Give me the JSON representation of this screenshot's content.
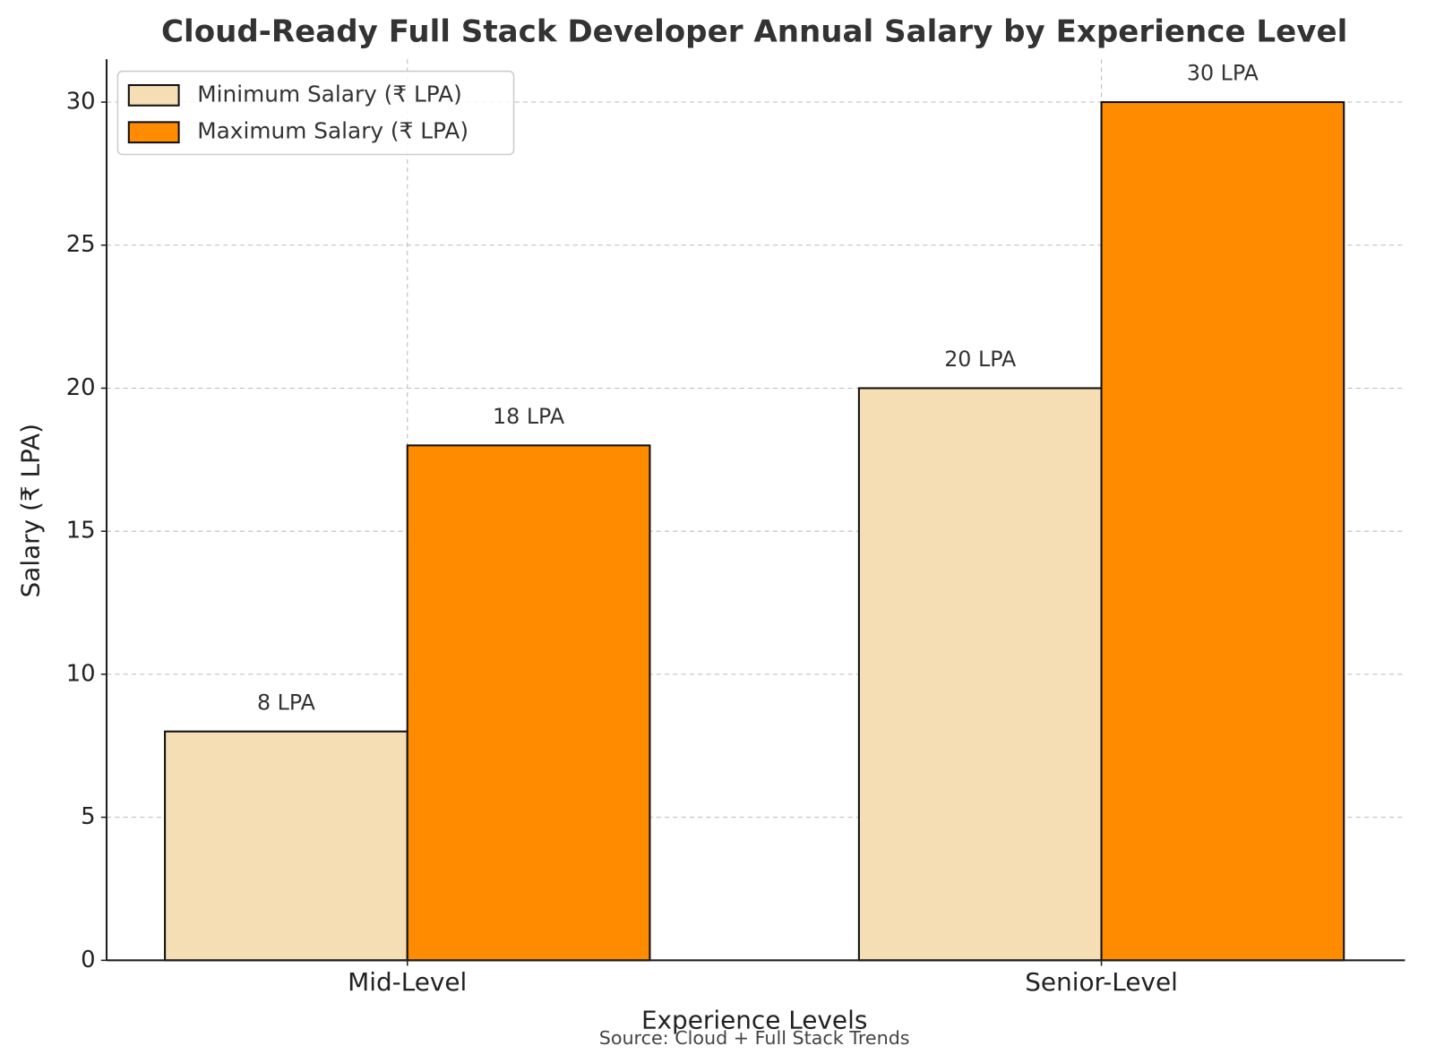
{
  "chart_data": {
    "type": "bar",
    "title": "Cloud-Ready Full Stack Developer Annual Salary by Experience Level",
    "x_label": "Experience Levels",
    "y_label": "Salary (₹ LPA)",
    "annotation": "Source: Cloud + Full Stack Trends",
    "categories": [
      "Mid-Level",
      "Senior-Level"
    ],
    "series": [
      {
        "name": "Minimum Salary (₹ LPA)",
        "color": "#f5deb3",
        "values": [
          8,
          20
        ],
        "value_labels": [
          "8 LPA",
          "20 LPA"
        ]
      },
      {
        "name": "Maximum Salary (₹ LPA)",
        "color": "#ff8c00",
        "values": [
          18,
          30
        ],
        "value_labels": [
          "18 LPA",
          "30 LPA"
        ]
      }
    ],
    "ylim": [
      0,
      31.5
    ],
    "yticks": [
      0,
      5,
      10,
      15,
      20,
      25,
      30
    ],
    "grid": true,
    "legend": "upper left"
  }
}
